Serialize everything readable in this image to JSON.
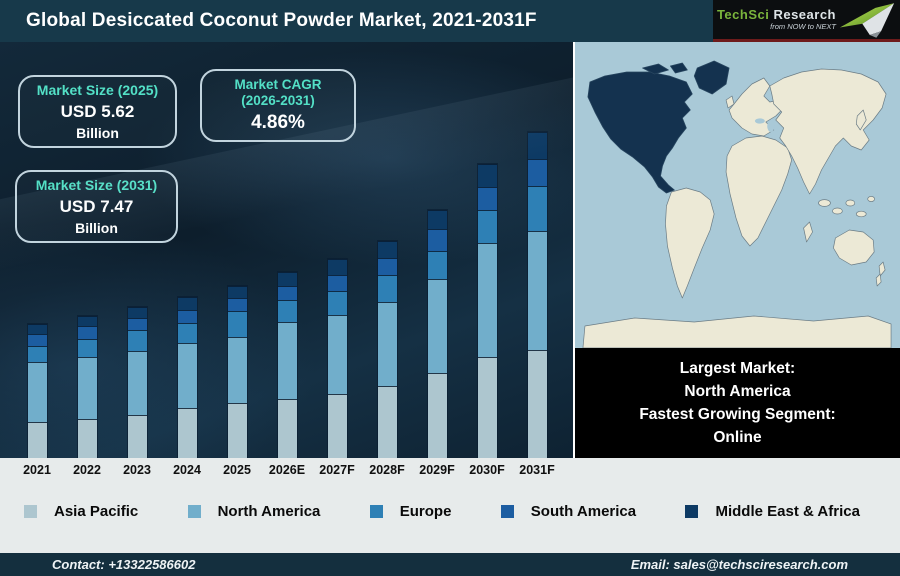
{
  "title_bar": {
    "title": "Global Desiccated Coconut Powder Market, 2021-2031F"
  },
  "logo": {
    "brand_primary": "TechSci",
    "brand_secondary": "Research",
    "tagline": "from NOW to NEXT"
  },
  "info_boxes": {
    "market_size_2025": {
      "label": "Market Size (2025)",
      "value": "USD 5.62",
      "unit": "Billion"
    },
    "market_cagr": {
      "label_line1": "Market CAGR",
      "label_line2": "(2026-2031)",
      "value": "4.86%"
    },
    "market_size_2031": {
      "label": "Market Size (2031)",
      "value": "USD 7.47",
      "unit": "Billion"
    }
  },
  "map_caption": {
    "line1": "Largest Market:",
    "line2": "North America",
    "line3": "Fastest Growing Segment:",
    "line4": "Online"
  },
  "chart_data": {
    "type": "bar",
    "stacked": true,
    "title": "Global Desiccated Coconut Powder Market, 2021-2031F",
    "xlabel": "",
    "ylabel": "",
    "note": "No numeric y-axis shown; series values are relative stacked segment heights (px) read from the figure. Known anchors: market size 2025 = USD 5.62 Billion, 2031 = USD 7.47 Billion, CAGR 2026-2031 = 4.86%.",
    "legend_position": "bottom",
    "categories": [
      "2021",
      "2022",
      "2023",
      "2024",
      "2025",
      "2026E",
      "2027F",
      "2028F",
      "2029F",
      "2030F",
      "2031F"
    ],
    "series": [
      {
        "name": "Asia Pacific",
        "color": "#adc6cf",
        "values": [
          36,
          39,
          43,
          50,
          55,
          59,
          64,
          72,
          85,
          101,
          108
        ]
      },
      {
        "name": "North America",
        "color": "#71aecb",
        "values": [
          60,
          62,
          64,
          65,
          66,
          77,
          79,
          84,
          94,
          114,
          119
        ]
      },
      {
        "name": "Europe",
        "color": "#2e80b5",
        "values": [
          16,
          18,
          21,
          20,
          26,
          22,
          24,
          27,
          28,
          33,
          45
        ]
      },
      {
        "name": "South America",
        "color": "#1c5da1",
        "values": [
          12,
          13,
          12,
          13,
          13,
          14,
          16,
          17,
          22,
          23,
          27
        ]
      },
      {
        "name": "Middle East & Africa",
        "color": "#0d3a64",
        "values": [
          10,
          10,
          11,
          13,
          12,
          14,
          16,
          17,
          19,
          23,
          27
        ]
      }
    ],
    "totals": [
      134,
      142,
      151,
      161,
      172,
      186,
      199,
      217,
      248,
      294,
      326
    ]
  },
  "legend": [
    {
      "label": "Asia Pacific",
      "color": "#adc6cf"
    },
    {
      "label": "North America",
      "color": "#71aecb"
    },
    {
      "label": "Europe",
      "color": "#2e80b5"
    },
    {
      "label": "South America",
      "color": "#1c5da1"
    },
    {
      "label": "Middle East & Africa",
      "color": "#0d3a64"
    }
  ],
  "map": {
    "highlighted_region": "North America",
    "ocean_color": "#a9c9d7",
    "land_color": "#ece9d6",
    "highlight_color": "#14324f"
  },
  "footer": {
    "contact": "Contact: +13322586602",
    "email": "Email: sales@techsciresearch.com"
  },
  "colors": {
    "title_bar_bg": "#17394a",
    "accent_teal": "#53e0c6",
    "chart_bg_dark": "#0d1e2c",
    "strip_bg": "#e7ebeb",
    "footer_bg": "#142f3e",
    "caption_bg": "#000000",
    "logo_green": "#7ab53c"
  }
}
